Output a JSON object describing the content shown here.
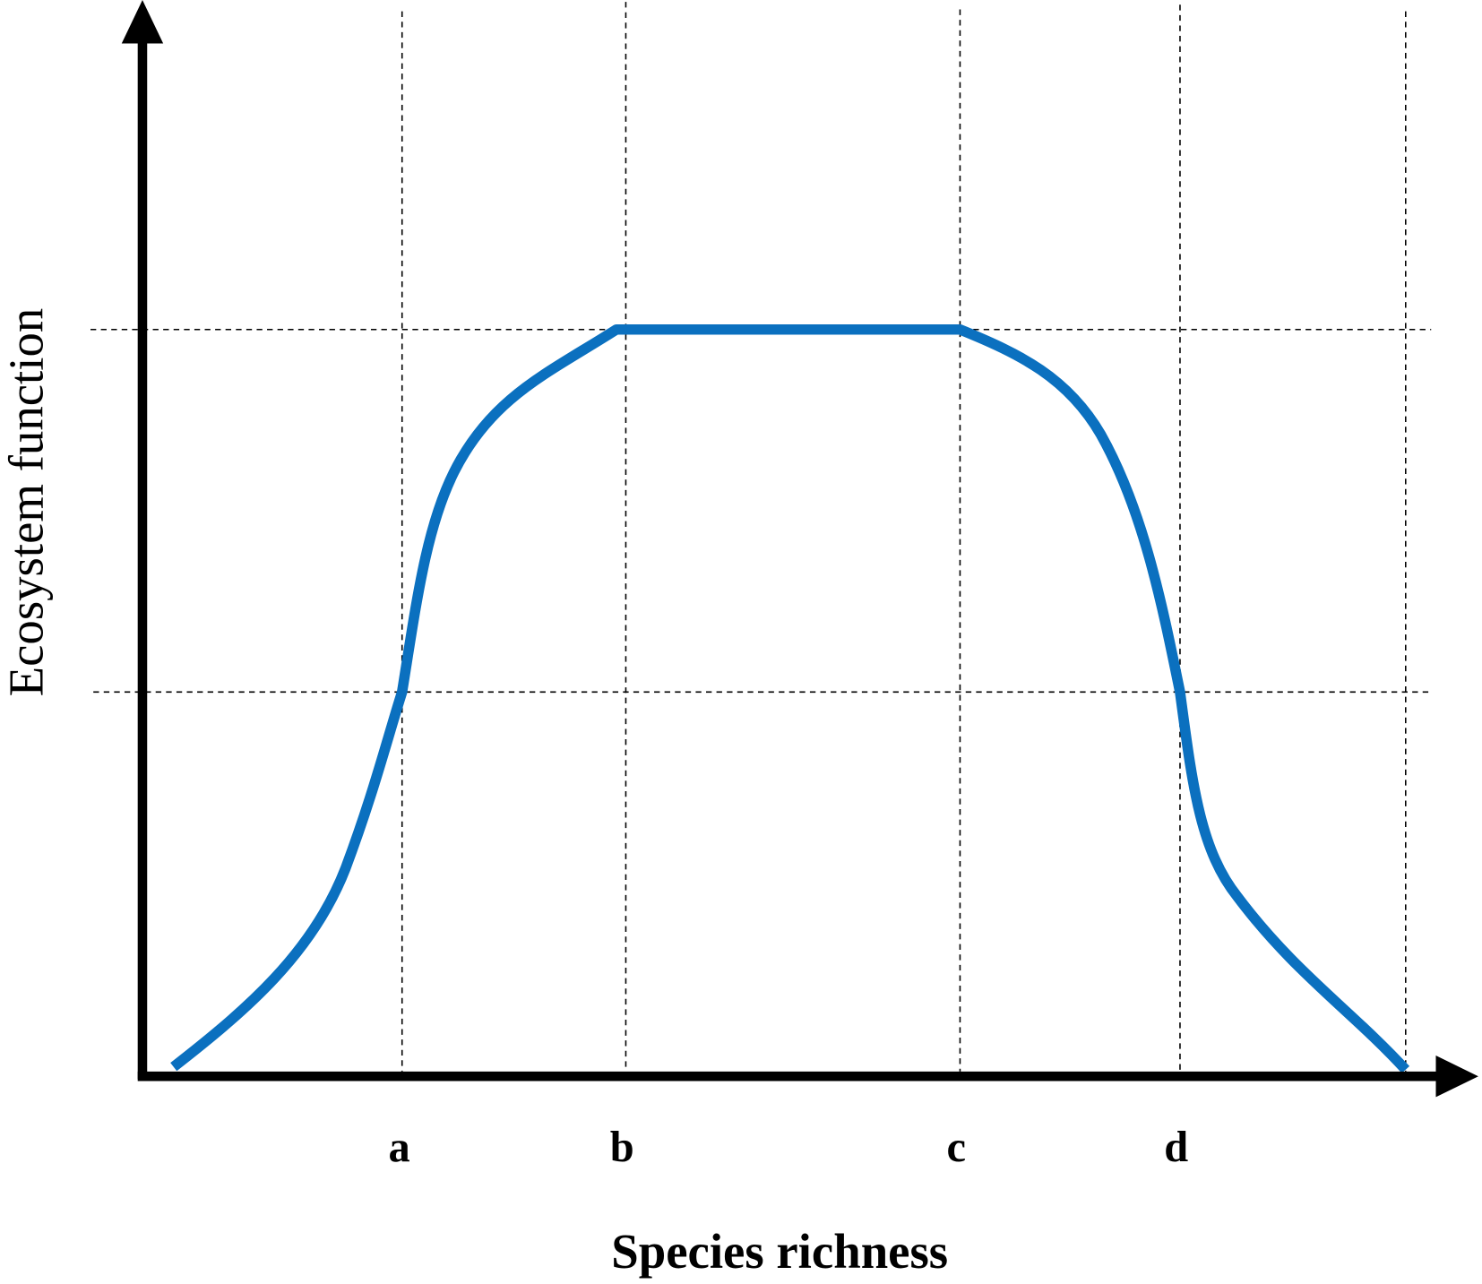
{
  "axes": {
    "x_label": "Species richness",
    "y_label": "Ecosystem function"
  },
  "markers": [
    "a",
    "b",
    "c",
    "d"
  ]
}
